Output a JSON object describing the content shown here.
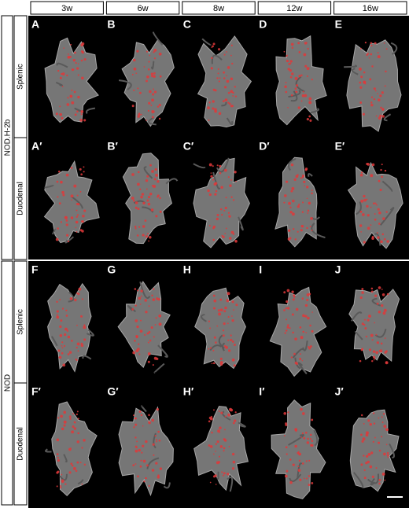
{
  "columns": [
    "3w",
    "6w",
    "8w",
    "12w",
    "16w"
  ],
  "groups": [
    {
      "label": "NOD.H-2b",
      "rows": [
        {
          "label": "Splenic",
          "panels": [
            "A",
            "B",
            "C",
            "D",
            "E"
          ]
        },
        {
          "label": "Duodenal",
          "panels": [
            "A′",
            "B′",
            "C′",
            "D′",
            "E′"
          ]
        }
      ]
    },
    {
      "label": "NOD",
      "rows": [
        {
          "label": "Splenic",
          "panels": [
            "F",
            "G",
            "H",
            "I",
            "J"
          ]
        },
        {
          "label": "Duodenal",
          "panels": [
            "F′",
            "G′",
            "H′",
            "I′",
            "J′"
          ]
        }
      ]
    }
  ]
}
